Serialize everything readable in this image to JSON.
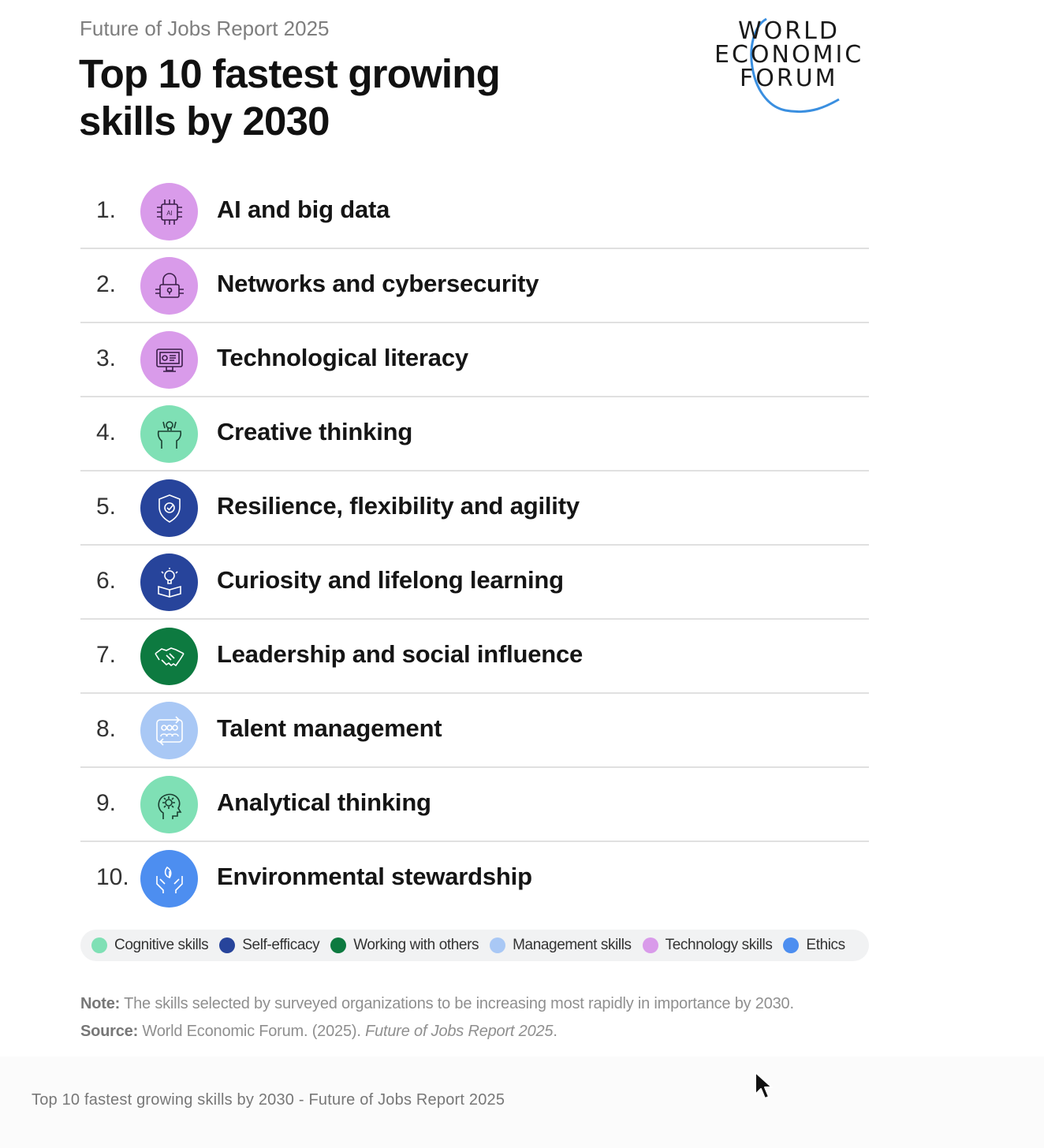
{
  "header": {
    "subtitle": "Future of Jobs Report 2025",
    "title_line1": "Top 10 fastest growing",
    "title_line2": "skills by 2030"
  },
  "logo": {
    "line1": "WORLD",
    "line2": "ECONOMIC",
    "line3": "FORUM"
  },
  "skills": [
    {
      "rank": "1.",
      "label": "AI and big data",
      "category": "Technology skills",
      "color": "#d99bea",
      "icon": "ai-chip-icon"
    },
    {
      "rank": "2.",
      "label": "Networks and cybersecurity",
      "category": "Technology skills",
      "color": "#d99bea",
      "icon": "lock-icon"
    },
    {
      "rank": "3.",
      "label": "Technological literacy",
      "category": "Technology skills",
      "color": "#d99bea",
      "icon": "monitor-icon"
    },
    {
      "rank": "4.",
      "label": "Creative thinking",
      "category": "Cognitive skills",
      "color": "#7fe0b5",
      "icon": "creative-head-icon"
    },
    {
      "rank": "5.",
      "label": "Resilience, flexibility and agility",
      "category": "Self-efficacy",
      "color": "#27449b",
      "icon": "shield-check-icon"
    },
    {
      "rank": "6.",
      "label": "Curiosity and lifelong learning",
      "category": "Self-efficacy",
      "color": "#27449b",
      "icon": "book-lightbulb-icon"
    },
    {
      "rank": "7.",
      "label": "Leadership and social influence",
      "category": "Working with others",
      "color": "#0d7a40",
      "icon": "handshake-icon"
    },
    {
      "rank": "8.",
      "label": "Talent management",
      "category": "Management skills",
      "color": "#a9c8f5",
      "icon": "people-cycle-icon"
    },
    {
      "rank": "9.",
      "label": "Analytical thinking",
      "category": "Cognitive skills",
      "color": "#7fe0b5",
      "icon": "gear-head-icon"
    },
    {
      "rank": "10.",
      "label": "Environmental stewardship",
      "category": "Ethics",
      "color": "#4d8ef0",
      "icon": "hands-leaf-icon"
    }
  ],
  "legend": [
    {
      "label": "Cognitive skills",
      "color": "#7fe0b5"
    },
    {
      "label": "Self-efficacy",
      "color": "#27449b"
    },
    {
      "label": "Working with others",
      "color": "#0d7a40"
    },
    {
      "label": "Management skills",
      "color": "#a9c8f5"
    },
    {
      "label": "Technology skills",
      "color": "#d99bea"
    },
    {
      "label": "Ethics",
      "color": "#4d8ef0"
    }
  ],
  "note": {
    "note_label": "Note:",
    "note_text": " The skills selected by surveyed organizations to be increasing most rapidly in importance by 2030.",
    "source_label": "Source:",
    "source_text": " World Economic Forum. (2025). ",
    "source_title": "Future of Jobs Report 2025",
    "source_end": "."
  },
  "caption": "Top 10 fastest growing skills by 2030 - Future of Jobs Report 2025"
}
